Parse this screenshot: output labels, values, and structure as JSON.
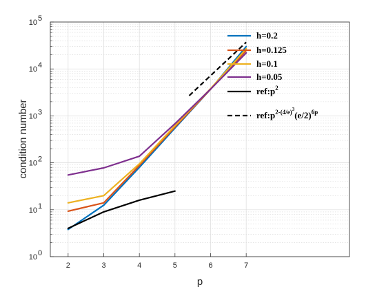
{
  "chart_data": {
    "type": "line",
    "xlabel": "p",
    "ylabel": "condition number",
    "x_ticks": [
      "2",
      "3",
      "4",
      "5",
      "6",
      "7"
    ],
    "xlim": [
      1.5,
      9.9
    ],
    "ylim": [
      1,
      100000
    ],
    "yscale": "log",
    "y_ticks": [
      {
        "base": "10",
        "exp": "0",
        "v": 1
      },
      {
        "base": "10",
        "exp": "1",
        "v": 10
      },
      {
        "base": "10",
        "exp": "2",
        "v": 100
      },
      {
        "base": "10",
        "exp": "3",
        "v": 1000
      },
      {
        "base": "10",
        "exp": "4",
        "v": 10000
      },
      {
        "base": "10",
        "exp": "5",
        "v": 100000
      }
    ],
    "grid": true,
    "minor_grid": true,
    "legend_position": "top-right",
    "series": [
      {
        "name": "h=0.2",
        "color": "#0072BD",
        "style": "solid",
        "x": [
          2,
          3,
          4,
          5,
          6,
          7
        ],
        "y": [
          3.8,
          12.5,
          80,
          550,
          3700,
          30000
        ]
      },
      {
        "name": "h=0.125",
        "color": "#D95319",
        "style": "solid",
        "x": [
          2,
          3,
          4,
          5,
          6,
          7
        ],
        "y": [
          9.3,
          14,
          88,
          580,
          3700,
          25000
        ]
      },
      {
        "name": "h=0.1",
        "color": "#EDB120",
        "style": "solid",
        "x": [
          2,
          3,
          4,
          5,
          6,
          7
        ],
        "y": [
          14,
          20,
          95,
          620,
          3800,
          27000
        ]
      },
      {
        "name": "h=0.05",
        "color": "#7E2F8E",
        "style": "solid",
        "x": [
          2,
          3,
          4,
          5,
          6,
          7
        ],
        "y": [
          55,
          78,
          138,
          680,
          3700,
          22000
        ]
      },
      {
        "name": "ref:p",
        "name_sup": "2",
        "color": "#000000",
        "style": "solid",
        "x": [
          2,
          3,
          4,
          5
        ],
        "y": [
          4,
          9,
          16,
          25
        ]
      },
      {
        "name": "ref:p",
        "name_sup": "2-(4/e)",
        "name_sup2": "3",
        "name_tail": "(e/2)",
        "name_tail_sup": "6p",
        "color": "#000000",
        "style": "dashed",
        "x": [
          5.4,
          7
        ],
        "y": [
          2700,
          37000
        ]
      }
    ]
  }
}
